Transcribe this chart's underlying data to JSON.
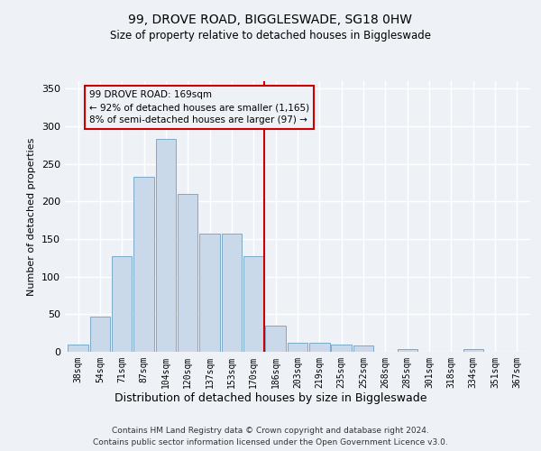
{
  "title": "99, DROVE ROAD, BIGGLESWADE, SG18 0HW",
  "subtitle": "Size of property relative to detached houses in Biggleswade",
  "xlabel": "Distribution of detached houses by size in Biggleswade",
  "ylabel": "Number of detached properties",
  "bins": [
    "38sqm",
    "54sqm",
    "71sqm",
    "87sqm",
    "104sqm",
    "120sqm",
    "137sqm",
    "153sqm",
    "170sqm",
    "186sqm",
    "203sqm",
    "219sqm",
    "235sqm",
    "252sqm",
    "268sqm",
    "285sqm",
    "301sqm",
    "318sqm",
    "334sqm",
    "351sqm",
    "367sqm"
  ],
  "values": [
    10,
    47,
    127,
    233,
    283,
    210,
    157,
    157,
    127,
    35,
    12,
    12,
    10,
    8,
    0,
    4,
    0,
    0,
    4,
    0,
    0
  ],
  "bar_color": "#c9d9ea",
  "bar_edge_color": "#7aaac8",
  "vline_x_index": 8,
  "vline_color": "#cc0000",
  "annotation_text": "99 DROVE ROAD: 169sqm\n← 92% of detached houses are smaller (1,165)\n8% of semi-detached houses are larger (97) →",
  "ylim": [
    0,
    360
  ],
  "yticks": [
    0,
    50,
    100,
    150,
    200,
    250,
    300,
    350
  ],
  "footer1": "Contains HM Land Registry data © Crown copyright and database right 2024.",
  "footer2": "Contains public sector information licensed under the Open Government Licence v3.0.",
  "bg_color": "#eef2f7",
  "grid_color": "#ffffff"
}
